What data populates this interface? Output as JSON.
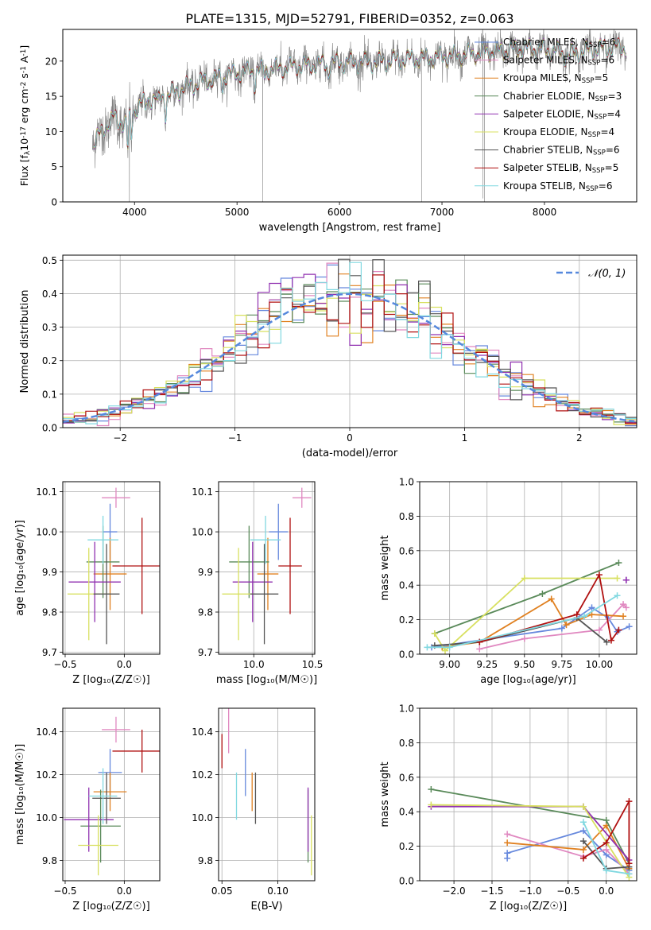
{
  "page": {
    "title": "PLATE=1315, MJD=52791, FIBERID=0352, z=0.063"
  },
  "colors": {
    "Chabrier MILES": "#6688dd",
    "Salpeter MILES": "#e088c0",
    "Kroupa MILES": "#e08020",
    "Chabrier ELODIE": "#5a8a5a",
    "Salpeter ELODIE": "#9030b0",
    "Kroupa ELODIE": "#d8e060",
    "Chabrier STELIB": "#555555",
    "Salpeter STELIB": "#b01010",
    "Kroupa STELIB": "#80d8e0",
    "data": "#808080",
    "gauss": "#5588dd"
  },
  "chart_data": [
    {
      "id": "spectrum",
      "type": "line",
      "xlabel": "wavelength [Angstrom, rest frame]",
      "ylabel": "Flux [f$_\\lambda$10$^{-17}$ erg cm$^{-2}$ s$^{-1}$ A$^{-1}$]",
      "xlim": [
        3300,
        8900
      ],
      "ylim": [
        0,
        24.5
      ],
      "xticks": [
        4000,
        5000,
        6000,
        7000,
        8000
      ],
      "yticks": [
        0,
        5,
        10,
        15,
        20
      ],
      "legend_position": "right",
      "continuum": [
        [
          3590,
          8.0
        ],
        [
          3700,
          10.5
        ],
        [
          3800,
          12.0
        ],
        [
          3900,
          11.0
        ],
        [
          4000,
          13.0
        ],
        [
          4100,
          14.5
        ],
        [
          4300,
          15.0
        ],
        [
          4500,
          16.3
        ],
        [
          4700,
          17.2
        ],
        [
          5000,
          18.3
        ],
        [
          5300,
          18.8
        ],
        [
          5600,
          19.3
        ],
        [
          6000,
          19.8
        ],
        [
          6300,
          19.8
        ],
        [
          6600,
          20.2
        ],
        [
          7000,
          20.6
        ],
        [
          7400,
          21.2
        ],
        [
          7800,
          21.8
        ],
        [
          8100,
          21.5
        ],
        [
          8200,
          20.8
        ],
        [
          8500,
          21.8
        ],
        [
          8800,
          22.0
        ]
      ],
      "absorption_lines": [
        [
          3934,
          4.5
        ],
        [
          3969,
          3.5
        ],
        [
          4102,
          2.0
        ],
        [
          4227,
          1.5
        ],
        [
          4304,
          2.5
        ],
        [
          4861,
          1.5
        ],
        [
          5175,
          2.0
        ],
        [
          5270,
          1.0
        ],
        [
          5890,
          1.5
        ]
      ],
      "glitches": [
        [
          5250,
          0
        ],
        [
          6800,
          0
        ],
        [
          7415,
          0
        ],
        [
          7400,
          0.5
        ],
        [
          3950,
          0
        ]
      ],
      "series": [
        {
          "name": "Chabrier MILES",
          "nssp": "6"
        },
        {
          "name": "Salpeter MILES",
          "nssp": "6"
        },
        {
          "name": "Kroupa MILES",
          "nssp": "5"
        },
        {
          "name": "Chabrier ELODIE",
          "nssp": "3"
        },
        {
          "name": "Salpeter ELODIE",
          "nssp": "4"
        },
        {
          "name": "Kroupa ELODIE",
          "nssp": "4"
        },
        {
          "name": "Chabrier STELIB",
          "nssp": "6"
        },
        {
          "name": "Salpeter STELIB",
          "nssp": "5"
        },
        {
          "name": "Kroupa STELIB",
          "nssp": "6"
        }
      ]
    },
    {
      "id": "residuals",
      "type": "step",
      "xlabel": "(data-model)/error",
      "ylabel": "Normed distribution",
      "xlim": [
        -2.5,
        2.5
      ],
      "ylim": [
        0,
        0.515
      ],
      "xticks": [
        -2,
        -1,
        0,
        1,
        2
      ],
      "xticklabels": [
        "−2",
        "−1",
        "0",
        "1",
        "2"
      ],
      "yticks": [
        0.0,
        0.1,
        0.2,
        0.3,
        0.4,
        0.5
      ],
      "yticklabels": [
        "0.0",
        "0.1",
        "0.2",
        "0.3",
        "0.4",
        "0.5"
      ],
      "bin_width": 0.1,
      "legend_label": "𝒩(0, 1)",
      "legend_position": "top-right",
      "gauss_mu": 0,
      "gauss_sigma": 1
    },
    {
      "id": "age_vs_Z",
      "type": "errorbar",
      "xlabel": "Z [log₁₀(Z/Z☉)]",
      "ylabel": "age  [log₁₀(age/yr)]",
      "xlim": [
        -0.52,
        0.3
      ],
      "ylim": [
        9.695,
        10.125
      ],
      "xticks": [
        -0.5,
        0.0
      ],
      "xticklabels": [
        "−0.5",
        "0.0"
      ],
      "yticks": [
        9.7,
        9.8,
        9.9,
        10.0,
        10.1
      ],
      "yticklabels": [
        "9.7",
        "9.8",
        "9.9",
        "10.0",
        "10.1"
      ],
      "points": [
        {
          "series": "Chabrier MILES",
          "x": -0.12,
          "xerr": 0.06,
          "y": 10.0,
          "yerr": 0.07
        },
        {
          "series": "Salpeter MILES",
          "x": -0.07,
          "xerr": 0.12,
          "y": 10.085,
          "yerr": 0.025
        },
        {
          "series": "Kroupa MILES",
          "x": -0.12,
          "xerr": 0.14,
          "y": 9.895,
          "yerr": 0.09
        },
        {
          "series": "Chabrier ELODIE",
          "x": -0.18,
          "xerr": 0.14,
          "y": 9.925,
          "yerr": 0.09
        },
        {
          "series": "Salpeter ELODIE",
          "x": -0.25,
          "xerr": 0.22,
          "y": 9.875,
          "yerr": 0.1
        },
        {
          "series": "Kroupa ELODIE",
          "x": -0.3,
          "xerr": 0.18,
          "y": 9.845,
          "yerr": 0.115
        },
        {
          "series": "Chabrier STELIB",
          "x": -0.15,
          "xerr": 0.11,
          "y": 9.845,
          "yerr": 0.125
        },
        {
          "series": "Salpeter STELIB",
          "x": 0.15,
          "xerr": 0.25,
          "y": 9.915,
          "yerr": 0.12
        },
        {
          "series": "Kroupa STELIB",
          "x": -0.18,
          "xerr": 0.13,
          "y": 9.98,
          "yerr": 0.06
        }
      ]
    },
    {
      "id": "age_vs_mass",
      "type": "errorbar",
      "xlabel": "mass [log₁₀(M/M☉)]",
      "ylabel": "",
      "xlim": [
        9.7,
        10.52
      ],
      "ylim": [
        9.695,
        10.125
      ],
      "xticks": [
        10.0,
        10.5
      ],
      "xticklabels": [
        "10.0",
        "10.5"
      ],
      "yticks": [
        9.7,
        9.8,
        9.9,
        10.0,
        10.1
      ],
      "yticklabels": [
        "9.7",
        "9.8",
        "9.9",
        "10.0",
        "10.1"
      ],
      "points": [
        {
          "series": "Chabrier MILES",
          "x": 10.21,
          "xerr": 0.08,
          "y": 10.0,
          "yerr": 0.07
        },
        {
          "series": "Salpeter MILES",
          "x": 10.41,
          "xerr": 0.08,
          "y": 10.085,
          "yerr": 0.025
        },
        {
          "series": "Kroupa MILES",
          "x": 10.12,
          "xerr": 0.09,
          "y": 9.895,
          "yerr": 0.09
        },
        {
          "series": "Chabrier ELODIE",
          "x": 9.96,
          "xerr": 0.17,
          "y": 9.925,
          "yerr": 0.09
        },
        {
          "series": "Salpeter ELODIE",
          "x": 9.99,
          "xerr": 0.17,
          "y": 9.875,
          "yerr": 0.1
        },
        {
          "series": "Kroupa ELODIE",
          "x": 9.87,
          "xerr": 0.14,
          "y": 9.845,
          "yerr": 0.115
        },
        {
          "series": "Chabrier STELIB",
          "x": 10.09,
          "xerr": 0.12,
          "y": 9.845,
          "yerr": 0.125
        },
        {
          "series": "Salpeter STELIB",
          "x": 10.31,
          "xerr": 0.1,
          "y": 9.915,
          "yerr": 0.12
        },
        {
          "series": "Kroupa STELIB",
          "x": 10.1,
          "xerr": 0.13,
          "y": 9.98,
          "yerr": 0.06
        }
      ]
    },
    {
      "id": "weight_vs_age",
      "type": "line",
      "xlabel": "age  [log₁₀(age/yr)]",
      "ylabel": "mass weight",
      "xlim": [
        8.8,
        10.25
      ],
      "ylim": [
        0,
        1.0
      ],
      "xticks": [
        9.0,
        9.25,
        9.5,
        9.75,
        10.0
      ],
      "xticklabels": [
        "9.00",
        "9.25",
        "9.50",
        "9.75",
        "10.00"
      ],
      "yticks": [
        0.0,
        0.2,
        0.4,
        0.6,
        0.8,
        1.0
      ],
      "yticklabels": [
        "0.0",
        "0.2",
        "0.4",
        "0.6",
        "0.8",
        "1.0"
      ],
      "series": [
        {
          "name": "Chabrier MILES",
          "points": [
            [
              8.88,
              0.04
            ],
            [
              9.75,
              0.15
            ],
            [
              9.95,
              0.27
            ],
            [
              10.06,
              0.21
            ],
            [
              10.12,
              0.13
            ],
            [
              10.2,
              0.16
            ]
          ]
        },
        {
          "name": "Salpeter MILES",
          "points": [
            [
              9.2,
              0.03
            ],
            [
              9.5,
              0.09
            ],
            [
              10.0,
              0.14
            ],
            [
              10.16,
              0.29
            ],
            [
              10.18,
              0.27
            ]
          ]
        },
        {
          "name": "Kroupa MILES",
          "points": [
            [
              8.95,
              0.04
            ],
            [
              9.2,
              0.07
            ],
            [
              9.68,
              0.32
            ],
            [
              9.78,
              0.17
            ],
            [
              9.95,
              0.23
            ],
            [
              10.16,
              0.22
            ]
          ]
        },
        {
          "name": "Chabrier ELODIE",
          "points": [
            [
              8.9,
              0.12
            ],
            [
              9.62,
              0.35
            ],
            [
              10.13,
              0.53
            ]
          ]
        },
        {
          "name": "Salpeter ELODIE",
          "points": [
            [
              10.18,
              0.43
            ],
            [
              10.18,
              0.43
            ]
          ]
        },
        {
          "name": "Kroupa ELODIE",
          "points": [
            [
              8.9,
              0.12
            ],
            [
              8.97,
              0.02
            ],
            [
              9.5,
              0.44
            ],
            [
              10.12,
              0.44
            ]
          ]
        },
        {
          "name": "Chabrier STELIB",
          "points": [
            [
              8.9,
              0.05
            ],
            [
              9.2,
              0.07
            ],
            [
              9.85,
              0.21
            ],
            [
              10.05,
              0.07
            ]
          ]
        },
        {
          "name": "Salpeter STELIB",
          "points": [
            [
              9.2,
              0.07
            ],
            [
              9.85,
              0.23
            ],
            [
              10.0,
              0.46
            ],
            [
              10.08,
              0.08
            ],
            [
              10.13,
              0.14
            ]
          ]
        },
        {
          "name": "Kroupa STELIB",
          "points": [
            [
              8.85,
              0.04
            ],
            [
              9.0,
              0.04
            ],
            [
              9.9,
              0.22
            ],
            [
              10.12,
              0.34
            ]
          ]
        }
      ]
    },
    {
      "id": "mass_vs_Z",
      "type": "errorbar",
      "xlabel": "Z [log₁₀(Z/Z☉)]",
      "ylabel": "mass [log₁₀(M/M☉)]",
      "xlim": [
        -0.52,
        0.3
      ],
      "ylim": [
        9.705,
        10.51
      ],
      "xticks": [
        -0.5,
        0.0
      ],
      "xticklabels": [
        "−0.5",
        "0.0"
      ],
      "yticks": [
        9.8,
        10.0,
        10.2,
        10.4
      ],
      "yticklabels": [
        "9.8",
        "10.0",
        "10.2",
        "10.4"
      ],
      "points": [
        {
          "series": "Chabrier MILES",
          "x": -0.12,
          "xerr": 0.1,
          "y": 10.21,
          "yerr": 0.11
        },
        {
          "series": "Salpeter MILES",
          "x": -0.07,
          "xerr": 0.12,
          "y": 10.41,
          "yerr": 0.06
        },
        {
          "series": "Kroupa MILES",
          "x": -0.12,
          "xerr": 0.14,
          "y": 10.12,
          "yerr": 0.09
        },
        {
          "series": "Chabrier ELODIE",
          "x": -0.2,
          "xerr": 0.17,
          "y": 9.96,
          "yerr": 0.17
        },
        {
          "series": "Salpeter ELODIE",
          "x": -0.3,
          "xerr": 0.21,
          "y": 9.99,
          "yerr": 0.15
        },
        {
          "series": "Kroupa ELODIE",
          "x": -0.22,
          "xerr": 0.17,
          "y": 9.87,
          "yerr": 0.14
        },
        {
          "series": "Chabrier STELIB",
          "x": -0.15,
          "xerr": 0.12,
          "y": 10.09,
          "yerr": 0.12
        },
        {
          "series": "Salpeter STELIB",
          "x": 0.15,
          "xerr": 0.25,
          "y": 10.31,
          "yerr": 0.1
        },
        {
          "series": "Kroupa STELIB",
          "x": -0.18,
          "xerr": 0.12,
          "y": 10.1,
          "yerr": 0.13
        }
      ]
    },
    {
      "id": "mass_vs_ebv",
      "type": "errorbar",
      "xlabel": "E(B-V)",
      "ylabel": "",
      "xlim": [
        0.047,
        0.133
      ],
      "ylim": [
        9.705,
        10.51
      ],
      "xticks": [
        0.05,
        0.1
      ],
      "xticklabels": [
        "0.05",
        "0.10"
      ],
      "yticks": [
        9.8,
        10.0,
        10.2,
        10.4
      ],
      "yticklabels": [
        "9.8",
        "10.0",
        "10.2",
        "10.4"
      ],
      "points": [
        {
          "series": "Chabrier MILES",
          "x": 0.071,
          "xerr": 0,
          "y": 10.21,
          "yerr": 0.11
        },
        {
          "series": "Salpeter MILES",
          "x": 0.056,
          "xerr": 0,
          "y": 10.41,
          "yerr": 0.11
        },
        {
          "series": "Kroupa MILES",
          "x": 0.077,
          "xerr": 0,
          "y": 10.12,
          "yerr": 0.09
        },
        {
          "series": "Chabrier ELODIE",
          "x": 0.127,
          "xerr": 0,
          "y": 9.96,
          "yerr": 0.17
        },
        {
          "series": "Salpeter ELODIE",
          "x": 0.127,
          "xerr": 0,
          "y": 9.99,
          "yerr": 0.15
        },
        {
          "series": "Kroupa ELODIE",
          "x": 0.13,
          "xerr": 0,
          "y": 9.87,
          "yerr": 0.14
        },
        {
          "series": "Chabrier STELIB",
          "x": 0.08,
          "xerr": 0,
          "y": 10.09,
          "yerr": 0.12
        },
        {
          "series": "Salpeter STELIB",
          "x": 0.05,
          "xerr": 0,
          "y": 10.31,
          "yerr": 0.08
        },
        {
          "series": "Kroupa STELIB",
          "x": 0.063,
          "xerr": 0,
          "y": 10.1,
          "yerr": 0.11
        }
      ]
    },
    {
      "id": "weight_vs_Z",
      "type": "line",
      "xlabel": "Z [log₁₀(Z/Z☉)]",
      "ylabel": "mass weight",
      "xlim": [
        -2.45,
        0.4
      ],
      "ylim": [
        0,
        1.0
      ],
      "xticks": [
        -2.0,
        -1.5,
        -1.0,
        -0.5,
        0.0
      ],
      "xticklabels": [
        "−2.0",
        "−1.5",
        "−1.0",
        "−0.5",
        "0.0"
      ],
      "yticks": [
        0.0,
        0.2,
        0.4,
        0.6,
        0.8,
        1.0
      ],
      "yticklabels": [
        "0.0",
        "0.2",
        "0.4",
        "0.6",
        "0.8",
        "1.0"
      ],
      "series": [
        {
          "name": "Chabrier MILES",
          "points": [
            [
              -1.3,
              0.13
            ],
            [
              -1.3,
              0.16
            ],
            [
              -0.3,
              0.29
            ],
            [
              0.0,
              0.15
            ],
            [
              0.3,
              0.06
            ]
          ]
        },
        {
          "name": "Salpeter MILES",
          "points": [
            [
              -1.3,
              0.27
            ],
            [
              -0.3,
              0.14
            ],
            [
              0.0,
              0.18
            ],
            [
              0.3,
              0.04
            ]
          ]
        },
        {
          "name": "Kroupa MILES",
          "points": [
            [
              -1.3,
              0.22
            ],
            [
              -0.3,
              0.18
            ],
            [
              0.0,
              0.32
            ],
            [
              0.3,
              0.07
            ]
          ]
        },
        {
          "name": "Chabrier ELODIE",
          "points": [
            [
              -2.3,
              0.53
            ],
            [
              0.0,
              0.35
            ],
            [
              0.3,
              0.1
            ]
          ]
        },
        {
          "name": "Salpeter ELODIE",
          "points": [
            [
              -2.3,
              0.43
            ],
            [
              -0.3,
              0.43
            ],
            [
              0.3,
              0.12
            ]
          ]
        },
        {
          "name": "Kroupa ELODIE",
          "points": [
            [
              -2.3,
              0.44
            ],
            [
              -0.3,
              0.43
            ],
            [
              0.3,
              0.02
            ]
          ]
        },
        {
          "name": "Chabrier STELIB",
          "points": [
            [
              -0.3,
              0.23
            ],
            [
              0.0,
              0.07
            ],
            [
              0.3,
              0.08
            ]
          ]
        },
        {
          "name": "Salpeter STELIB",
          "points": [
            [
              -0.3,
              0.13
            ],
            [
              0.0,
              0.22
            ],
            [
              0.3,
              0.46
            ],
            [
              0.3,
              0.1
            ]
          ]
        },
        {
          "name": "Kroupa STELIB",
          "points": [
            [
              -0.3,
              0.34
            ],
            [
              0.0,
              0.06
            ],
            [
              0.3,
              0.04
            ]
          ]
        }
      ]
    }
  ]
}
